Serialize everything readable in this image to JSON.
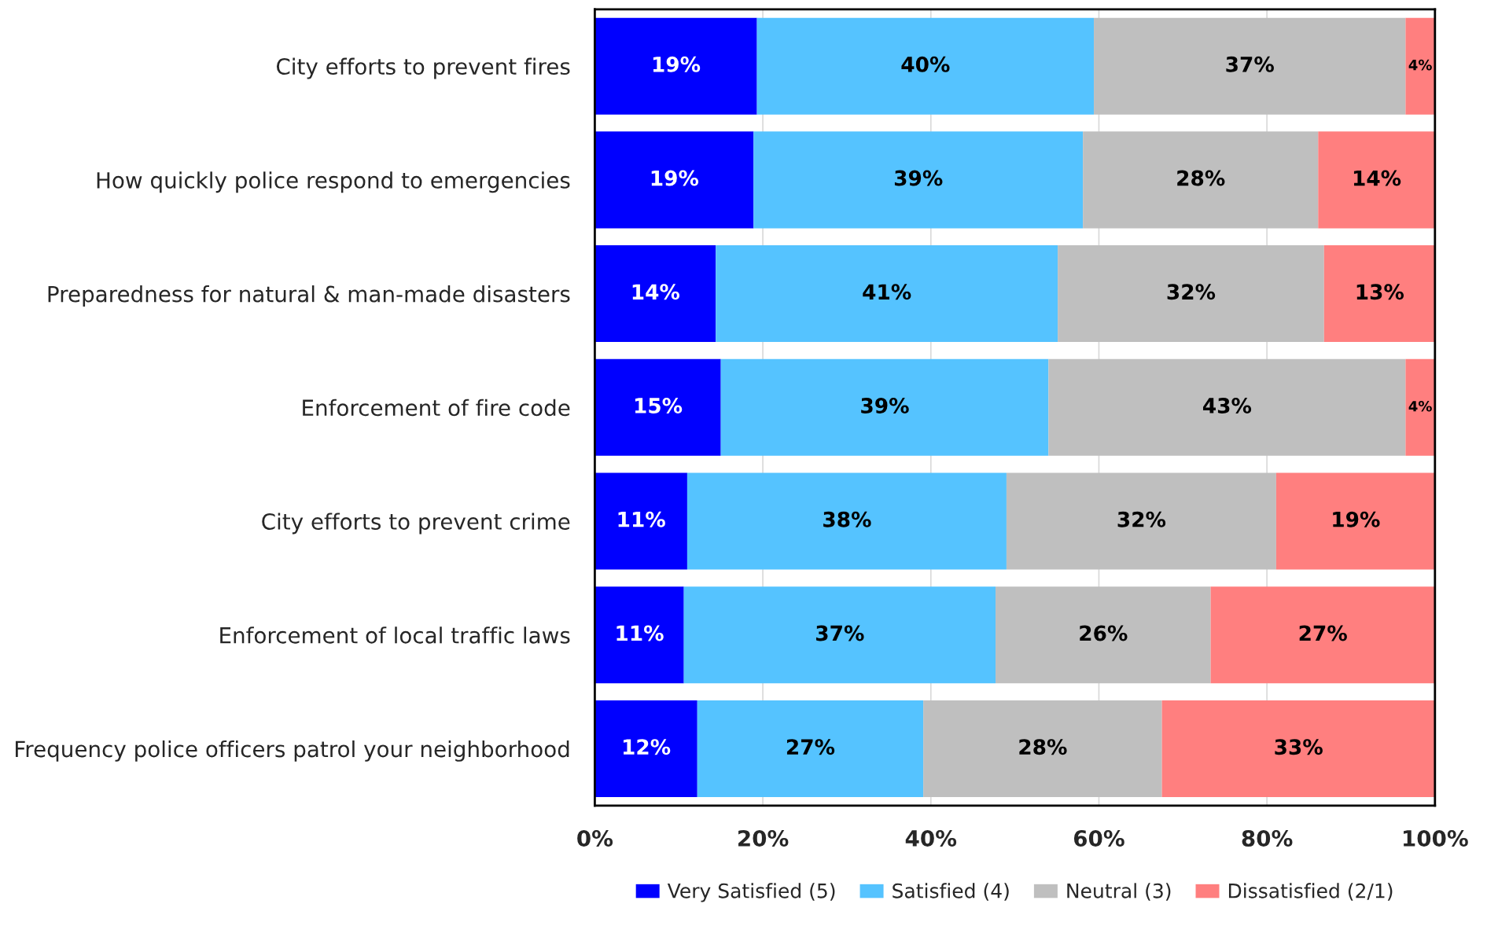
{
  "chart_data": {
    "type": "bar",
    "orientation": "horizontal",
    "stacked": true,
    "categories": [
      "City efforts to prevent fires",
      "How quickly police respond to emergencies",
      "Preparedness for natural & man-made disasters",
      "Enforcement of fire code",
      "City efforts to prevent crime",
      "Enforcement of local traffic laws",
      "Frequency police officers patrol your neighborhood"
    ],
    "series": [
      {
        "name": "Very Satisfied (5)",
        "color": "#0000ff",
        "values": [
          19.3,
          18.9,
          14.4,
          15,
          11.0,
          10.6,
          12.2
        ],
        "value_labels": [
          "19%",
          "19%",
          "14%",
          "15%",
          "11%",
          "11%",
          "12%"
        ]
      },
      {
        "name": "Satisfied (4)",
        "color": "#55c3ff",
        "values": [
          40.1,
          39.2,
          40.7,
          39,
          38.0,
          37.1,
          26.9
        ],
        "value_labels": [
          "40%",
          "39%",
          "41%",
          "39%",
          "38%",
          "37%",
          "27%"
        ]
      },
      {
        "name": "Neutral (3)",
        "color": "#bfbfbf",
        "values": [
          37.1,
          28.0,
          31.7,
          42.5,
          32.1,
          25.6,
          28.4
        ],
        "value_labels": [
          "37%",
          "28%",
          "32%",
          "43%",
          "32%",
          "26%",
          "28%"
        ]
      },
      {
        "name": "Dissatisfied (2/1)",
        "color": "#ff7f7f",
        "values": [
          3.5,
          13.9,
          13.2,
          3.5,
          18.9,
          26.7,
          32.5
        ],
        "value_labels": [
          "4%",
          "14%",
          "13%",
          "4%",
          "19%",
          "27%",
          "33%"
        ]
      }
    ],
    "xlim": [
      0,
      100
    ],
    "xticks": [
      {
        "value": 0,
        "label": "0%"
      },
      {
        "value": 20,
        "label": "20%"
      },
      {
        "value": 40,
        "label": "40%"
      },
      {
        "value": 60,
        "label": "60%"
      },
      {
        "value": 80,
        "label": "80%"
      },
      {
        "value": 100,
        "label": "100%"
      }
    ],
    "grid": "x",
    "legend": "bottom"
  }
}
